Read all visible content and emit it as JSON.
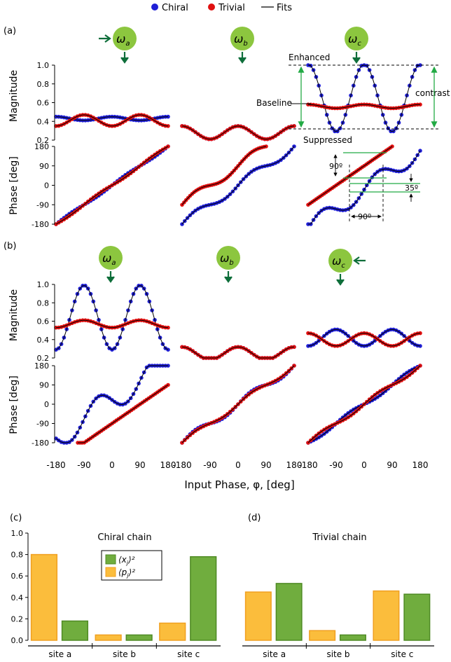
{
  "legend": {
    "items": [
      {
        "label": "Chiral",
        "color": "#1f1fd6",
        "marker": "dot"
      },
      {
        "label": "Trivial",
        "color": "#e01010",
        "marker": "dot"
      },
      {
        "label": "Fits",
        "color": "#000000",
        "marker": "line"
      }
    ]
  },
  "panels": {
    "a": "(a)",
    "b": "(b)",
    "c": "(c)",
    "d": "(d)"
  },
  "node_symbols": {
    "a": {
      "base": "ω",
      "sub": "a"
    },
    "b": {
      "base": "ω",
      "sub": "b"
    },
    "c": {
      "base": "ω",
      "sub": "c"
    }
  },
  "colors": {
    "chiral": "#1f1fd6",
    "trivial": "#e01010",
    "fit": "#000000",
    "node": "#8cc63f",
    "arrow": "#0e6e3a",
    "annot_green": "#22aa44",
    "bar_p": "#fbbd3c",
    "bar_p_edge": "#f0a020",
    "bar_x": "#70ad3e",
    "bar_x_edge": "#4f8a24"
  },
  "axes": {
    "magnitude_label": "Magnitude",
    "phase_label": "Phase [deg]",
    "x_label": "Input Phase, φ, [deg]",
    "x_ticks": [
      "-180",
      "-90",
      "0",
      "90",
      "180"
    ],
    "mag_ticks": [
      "1.0",
      "0.8",
      "0.6",
      "0.4",
      "0.2"
    ],
    "phase_ticks": [
      "180",
      "90",
      "0",
      "-90",
      "-180"
    ]
  },
  "annotations": {
    "enhanced": "Enhanced",
    "baseline": "Baseline",
    "suppressed": "Suppressed",
    "contrast": "contrast",
    "ninety_vertical": "90º",
    "thirty_five": "35º",
    "ninety_horizontal": "90º"
  },
  "chart_data": [
    {
      "type": "line",
      "row": "a",
      "site": "a",
      "quantity": "magnitude",
      "x": [
        -180,
        -90,
        0,
        90,
        180
      ],
      "ylim": [
        0.2,
        1.0
      ],
      "series": [
        {
          "name": "Chiral",
          "model": "cos",
          "offset": 0.43,
          "amp": 0.02,
          "freq": 2,
          "phase_deg": 0
        },
        {
          "name": "Trivial",
          "model": "cos",
          "offset": 0.41,
          "amp": 0.06,
          "freq": 2,
          "phase_deg": 180
        }
      ]
    },
    {
      "type": "line",
      "row": "a",
      "site": "b",
      "quantity": "magnitude",
      "x": [
        -180,
        -90,
        0,
        90,
        180
      ],
      "ylim": [
        0.2,
        1.0
      ],
      "series": [
        {
          "name": "Chiral",
          "model": "cos",
          "offset": 0.28,
          "amp": 0.07,
          "freq": 2,
          "phase_deg": 0
        },
        {
          "name": "Trivial",
          "model": "cos",
          "offset": 0.28,
          "amp": 0.07,
          "freq": 2,
          "phase_deg": 0
        }
      ]
    },
    {
      "type": "line",
      "row": "a",
      "site": "c",
      "quantity": "magnitude",
      "x": [
        -180,
        -90,
        0,
        90,
        180
      ],
      "ylim": [
        0.2,
        1.0
      ],
      "series": [
        {
          "name": "Chiral",
          "model": "cos",
          "offset": 0.65,
          "amp": 0.36,
          "freq": 2,
          "phase_deg": 0
        },
        {
          "name": "Trivial",
          "model": "cos",
          "offset": 0.56,
          "amp": 0.02,
          "freq": 2,
          "phase_deg": 0
        }
      ]
    },
    {
      "type": "line",
      "row": "a",
      "site": "a",
      "quantity": "phase",
      "x": [
        -180,
        -90,
        0,
        90,
        180
      ],
      "ylim": [
        -180,
        180
      ],
      "series": [
        {
          "name": "Chiral",
          "model": "lin",
          "offset": 0,
          "wiggle": 5
        },
        {
          "name": "Trivial",
          "model": "lin",
          "offset": 0,
          "wiggle": -5
        }
      ]
    },
    {
      "type": "line",
      "row": "a",
      "site": "b",
      "quantity": "phase",
      "x": [
        -180,
        -90,
        0,
        90,
        180
      ],
      "ylim": [
        -180,
        180
      ],
      "series": [
        {
          "name": "Chiral",
          "model": "lin",
          "offset": 0,
          "wiggle": 20,
          "xrange": [
            -180,
            180
          ]
        },
        {
          "name": "Trivial",
          "model": "lin",
          "offset": 90,
          "wiggle": 20,
          "xrange": [
            -180,
            90
          ]
        }
      ]
    },
    {
      "type": "line",
      "row": "a",
      "site": "c",
      "quantity": "phase",
      "x": [
        -180,
        -90,
        0,
        90,
        180
      ],
      "ylim": [
        -180,
        180
      ],
      "series": [
        {
          "name": "Chiral",
          "model": "lin",
          "offset": -20,
          "wiggle": 40,
          "xrange": [
            -180,
            180
          ]
        },
        {
          "name": "Trivial",
          "model": "lin",
          "offset": 90,
          "wiggle": 0,
          "xrange": [
            -180,
            90
          ]
        }
      ]
    },
    {
      "type": "line",
      "row": "b",
      "site": "a",
      "quantity": "magnitude",
      "x": [
        -180,
        -90,
        0,
        90,
        180
      ],
      "ylim": [
        0.2,
        1.0
      ],
      "series": [
        {
          "name": "Chiral",
          "model": "cos",
          "offset": 0.64,
          "amp": 0.35,
          "freq": 2,
          "phase_deg": 180
        },
        {
          "name": "Trivial",
          "model": "cos",
          "offset": 0.57,
          "amp": 0.04,
          "freq": 2,
          "phase_deg": 180
        }
      ]
    },
    {
      "type": "line",
      "row": "b",
      "site": "b",
      "quantity": "magnitude",
      "x": [
        -180,
        -90,
        0,
        90,
        180
      ],
      "ylim": [
        0.2,
        1.0
      ],
      "series": [
        {
          "name": "Chiral",
          "model": "cos",
          "offset": 0.25,
          "amp": 0.07,
          "freq": 2,
          "phase_deg": 0
        },
        {
          "name": "Trivial",
          "model": "cos",
          "offset": 0.25,
          "amp": 0.07,
          "freq": 2,
          "phase_deg": 0
        }
      ]
    },
    {
      "type": "line",
      "row": "b",
      "site": "c",
      "quantity": "magnitude",
      "x": [
        -180,
        -90,
        0,
        90,
        180
      ],
      "ylim": [
        0.2,
        1.0
      ],
      "series": [
        {
          "name": "Chiral",
          "model": "cos",
          "offset": 0.42,
          "amp": 0.09,
          "freq": 2,
          "phase_deg": 180
        },
        {
          "name": "Trivial",
          "model": "cos",
          "offset": 0.4,
          "amp": 0.07,
          "freq": 2,
          "phase_deg": 0
        }
      ]
    },
    {
      "type": "line",
      "row": "b",
      "site": "a",
      "quantity": "phase",
      "x": [
        -180,
        -90,
        0,
        90,
        180
      ],
      "ylim": [
        -180,
        180
      ],
      "series": [
        {
          "name": "Chiral",
          "model": "lin",
          "offset": 20,
          "wiggle": -60,
          "xrange": [
            -180,
            180
          ]
        },
        {
          "name": "Trivial",
          "model": "lin",
          "offset": -90,
          "wiggle": 0,
          "xrange": [
            -110,
            180
          ]
        }
      ]
    },
    {
      "type": "line",
      "row": "b",
      "site": "b",
      "quantity": "phase",
      "x": [
        -180,
        -90,
        0,
        90,
        180
      ],
      "ylim": [
        -180,
        180
      ],
      "series": [
        {
          "name": "Chiral",
          "model": "lin",
          "offset": 0,
          "wiggle": 18
        },
        {
          "name": "Trivial",
          "model": "lin",
          "offset": 0,
          "wiggle": 12
        }
      ]
    },
    {
      "type": "line",
      "row": "b",
      "site": "c",
      "quantity": "phase",
      "x": [
        -180,
        -90,
        0,
        90,
        180
      ],
      "ylim": [
        -180,
        180
      ],
      "series": [
        {
          "name": "Chiral",
          "model": "lin",
          "offset": 0,
          "wiggle": -10
        },
        {
          "name": "Trivial",
          "model": "lin",
          "offset": 0,
          "wiggle": 10
        }
      ]
    },
    {
      "type": "bar",
      "panel": "c",
      "title": "Chiral chain",
      "categories": [
        "site a",
        "site b",
        "site c"
      ],
      "ylim": [
        0,
        1.0
      ],
      "yticks": [
        "0.0",
        "0.2",
        "0.4",
        "0.6",
        "0.8",
        "1.0"
      ],
      "series": [
        {
          "name": "⟨p_j⟩²",
          "values": [
            0.8,
            0.05,
            0.16
          ]
        },
        {
          "name": "⟨x_j⟩²",
          "values": [
            0.18,
            0.05,
            0.78
          ]
        }
      ],
      "legend": [
        {
          "base": "⟨x",
          "sub": "j",
          "sup": "⟩²"
        },
        {
          "base": "⟨p",
          "sub": "j",
          "sup": "⟩²"
        }
      ]
    },
    {
      "type": "bar",
      "panel": "d",
      "title": "Trivial chain",
      "categories": [
        "site a",
        "site b",
        "site c"
      ],
      "ylim": [
        0,
        1.0
      ],
      "series": [
        {
          "name": "⟨p_j⟩²",
          "values": [
            0.45,
            0.09,
            0.46
          ]
        },
        {
          "name": "⟨x_j⟩²",
          "values": [
            0.53,
            0.05,
            0.43
          ]
        }
      ]
    }
  ]
}
